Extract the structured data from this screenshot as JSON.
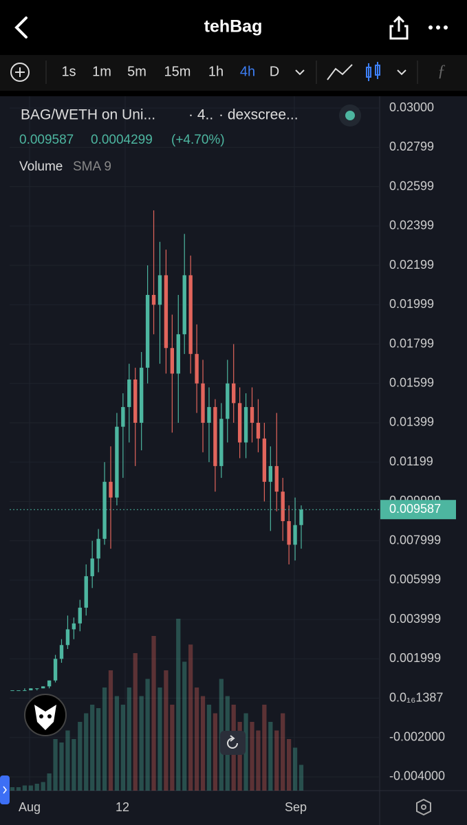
{
  "header": {
    "title": "tehBag"
  },
  "toolbar": {
    "intervals": [
      "1s",
      "1m",
      "5m",
      "15m",
      "1h",
      "4h",
      "D"
    ],
    "active": "4h"
  },
  "chart_data": {
    "type": "candlestick",
    "legend": {
      "pair": "BAG/WETH on Uni...",
      "interval": "· 4..",
      "source": "· dexscree...",
      "change": "0.0004299",
      "change_pct": "(+4.70%)",
      "indicator": "Volume",
      "indicator_param": "SMA 9"
    },
    "last_price": 0.009587,
    "up_color": "#4db6a0",
    "down_color": "#e2655c",
    "ylim": [
      -0.0047,
      0.0306
    ],
    "yticks": [
      {
        "value": 0.03,
        "label": "0.03000"
      },
      {
        "value": 0.028,
        "label": "0.02799"
      },
      {
        "value": 0.026,
        "label": "0.02599"
      },
      {
        "value": 0.024,
        "label": "0.02399"
      },
      {
        "value": 0.022,
        "label": "0.02199"
      },
      {
        "value": 0.02,
        "label": "0.01999"
      },
      {
        "value": 0.018,
        "label": "0.01799"
      },
      {
        "value": 0.016,
        "label": "0.01599"
      },
      {
        "value": 0.014,
        "label": "0.01399"
      },
      {
        "value": 0.012,
        "label": "0.01199"
      },
      {
        "value": 0.01,
        "label": "0.009999"
      },
      {
        "value": 0.008,
        "label": "0.007999"
      },
      {
        "value": 0.006,
        "label": "0.005999"
      },
      {
        "value": 0.004,
        "label": "0.003999"
      },
      {
        "value": 0.002,
        "label": "0.001999"
      },
      {
        "value": 0,
        "label": "0.0₁₆1387"
      },
      {
        "value": -0.002,
        "label": "-0.002000"
      },
      {
        "value": -0.004,
        "label": "-0.004000"
      }
    ],
    "xlabels": [
      "Aug",
      "12",
      "Sep"
    ],
    "open": [
      0.0004,
      0.0004,
      0.0004,
      0.0004,
      0.0005,
      0.0005,
      0.0006,
      0.0009,
      0.002,
      0.0027,
      0.0035,
      0.0038,
      0.0046,
      0.0062,
      0.0071,
      0.0081,
      0.011,
      0.0102,
      0.0138,
      0.0148,
      0.0162,
      0.014,
      0.0168,
      0.0205,
      0.02,
      0.0215,
      0.0178,
      0.0165,
      0.0185,
      0.0215,
      0.0175,
      0.016,
      0.014,
      0.0148,
      0.0118,
      0.0142,
      0.016,
      0.015,
      0.013,
      0.0148,
      0.014,
      0.0132,
      0.011,
      0.0118,
      0.0105,
      0.009,
      0.0078,
      0.0088
    ],
    "high": [
      0.0004,
      0.0004,
      0.0005,
      0.0005,
      0.0005,
      0.0006,
      0.0009,
      0.0022,
      0.003,
      0.0042,
      0.0041,
      0.005,
      0.0068,
      0.008,
      0.0086,
      0.012,
      0.0128,
      0.0145,
      0.0155,
      0.017,
      0.0168,
      0.0176,
      0.022,
      0.0248,
      0.0232,
      0.0228,
      0.0195,
      0.0205,
      0.0236,
      0.0225,
      0.019,
      0.0172,
      0.0158,
      0.0152,
      0.015,
      0.0172,
      0.018,
      0.0158,
      0.0155,
      0.0158,
      0.0152,
      0.014,
      0.0128,
      0.0145,
      0.0112,
      0.0098,
      0.0102,
      0.0098
    ],
    "low": [
      0.0004,
      0.0004,
      0.0004,
      0.0004,
      0.0004,
      0.0005,
      0.0005,
      0.0008,
      0.0018,
      0.0025,
      0.003,
      0.0034,
      0.0042,
      0.0056,
      0.0064,
      0.0078,
      0.0076,
      0.0098,
      0.0112,
      0.013,
      0.0118,
      0.0126,
      0.016,
      0.0185,
      0.017,
      0.0165,
      0.0135,
      0.014,
      0.0175,
      0.0165,
      0.0145,
      0.0125,
      0.012,
      0.0105,
      0.0112,
      0.013,
      0.014,
      0.0122,
      0.0122,
      0.013,
      0.0125,
      0.01,
      0.0085,
      0.0095,
      0.008,
      0.0068,
      0.007,
      0.0076
    ],
    "close": [
      0.0004,
      0.0004,
      0.0004,
      0.0005,
      0.0005,
      0.0006,
      0.0009,
      0.002,
      0.0027,
      0.0035,
      0.0038,
      0.0046,
      0.0062,
      0.0071,
      0.0081,
      0.011,
      0.0102,
      0.0138,
      0.0148,
      0.0162,
      0.014,
      0.0168,
      0.0205,
      0.02,
      0.0215,
      0.0178,
      0.0165,
      0.0185,
      0.0215,
      0.0175,
      0.016,
      0.014,
      0.0148,
      0.0118,
      0.0142,
      0.016,
      0.015,
      0.013,
      0.0148,
      0.014,
      0.0132,
      0.011,
      0.0118,
      0.0105,
      0.009,
      0.0078,
      0.0088,
      0.009587
    ],
    "volume": [
      2,
      2,
      3,
      3,
      4,
      5,
      10,
      30,
      28,
      35,
      30,
      40,
      45,
      50,
      48,
      60,
      70,
      55,
      50,
      60,
      80,
      55,
      65,
      90,
      60,
      70,
      50,
      100,
      75,
      85,
      60,
      55,
      50,
      45,
      65,
      55,
      50,
      40,
      45,
      40,
      35,
      50,
      40,
      35,
      45,
      30,
      25,
      15
    ]
  }
}
